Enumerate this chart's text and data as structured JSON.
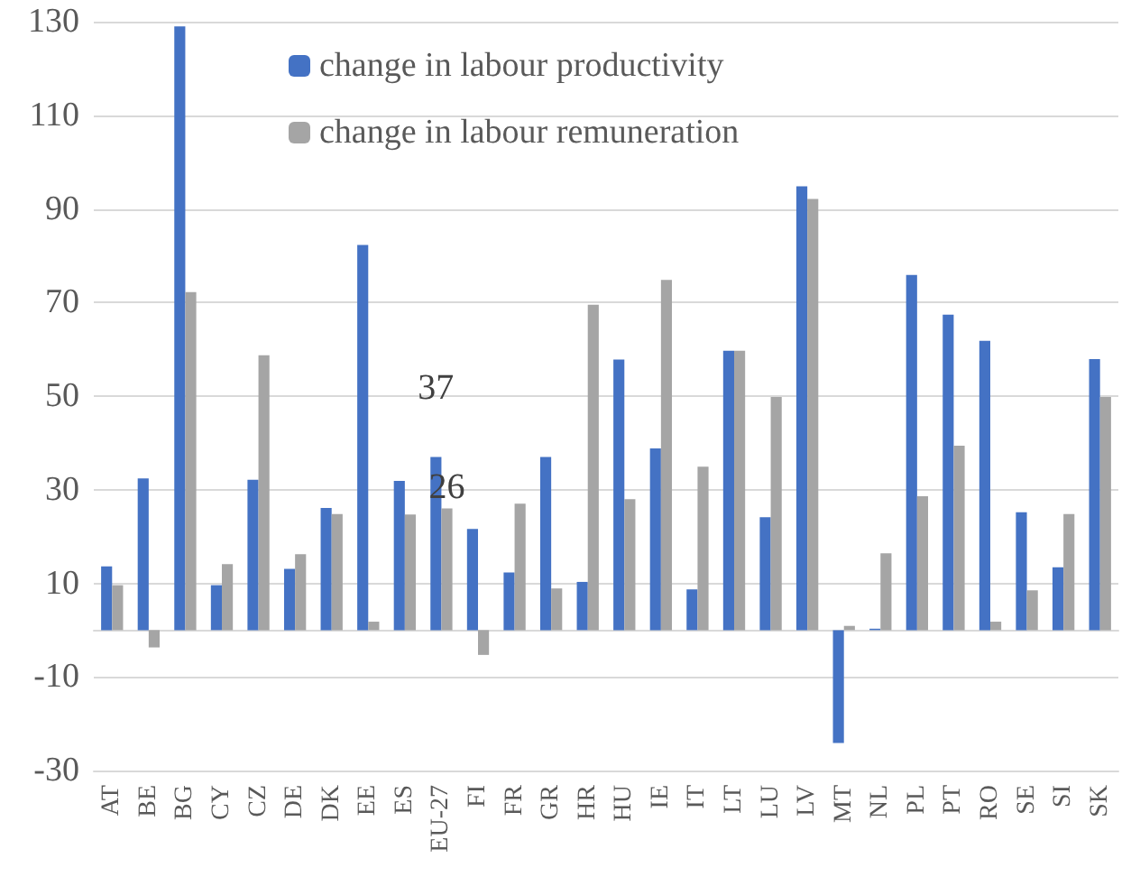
{
  "chart_data": {
    "type": "bar",
    "categories": [
      "AT",
      "BE",
      "BG",
      "CY",
      "CZ",
      "DE",
      "DK",
      "EE",
      "ES",
      "EU-27",
      "FI",
      "FR",
      "GR",
      "HR",
      "HU",
      "IE",
      "IT",
      "LT",
      "LU",
      "LV",
      "MT",
      "NL",
      "PL",
      "PT",
      "RO",
      "SE",
      "SI",
      "SK"
    ],
    "series": [
      {
        "name": "change in labour productivity",
        "color": "#4472c4",
        "values": [
          13.6,
          32.4,
          129,
          9.6,
          32.1,
          13.1,
          26.1,
          82.3,
          31.9,
          37,
          21.6,
          12.3,
          37,
          10.3,
          57.8,
          38.8,
          8.7,
          59.7,
          24.1,
          94.8,
          -24.1,
          0.3,
          75.9,
          67.4,
          61.8,
          25.2,
          13.4,
          57.9
        ],
        "value_labels": [
          null,
          null,
          null,
          null,
          null,
          null,
          null,
          null,
          null,
          "37",
          null,
          null,
          null,
          null,
          null,
          null,
          null,
          null,
          null,
          null,
          null,
          null,
          null,
          null,
          null,
          null,
          null,
          null
        ]
      },
      {
        "name": "change in labour remuneration",
        "color": "#a5a5a5",
        "values": [
          9.6,
          -3.7,
          72.2,
          14.1,
          58.7,
          16.2,
          24.8,
          1.8,
          24.7,
          26,
          -5.3,
          27,
          8.9,
          69.5,
          28,
          74.8,
          34.9,
          59.7,
          49.8,
          92.1,
          0.9,
          16.4,
          28.6,
          39.4,
          1.8,
          8.5,
          24.8,
          49.8
        ],
        "value_labels": [
          null,
          null,
          null,
          null,
          null,
          null,
          null,
          null,
          null,
          "26",
          null,
          null,
          null,
          null,
          null,
          null,
          null,
          null,
          null,
          null,
          null,
          null,
          null,
          null,
          null,
          null,
          null,
          null
        ]
      }
    ],
    "ylim": [
      -30,
      130
    ],
    "yticks": [
      -30,
      -10,
      10,
      30,
      50,
      70,
      90,
      110,
      130
    ],
    "grid": "y",
    "legend": "top"
  }
}
